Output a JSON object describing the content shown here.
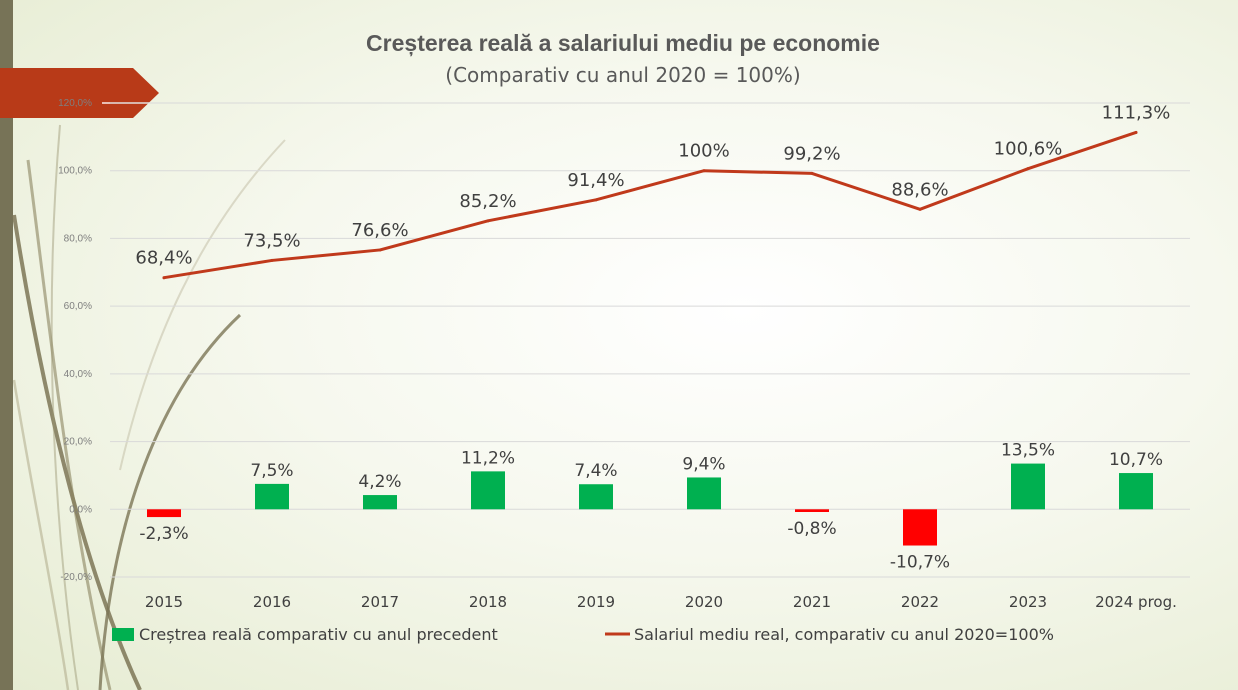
{
  "chart_data": {
    "type": "bar+line",
    "title": "Creșterea reală a salariului mediu pe economie",
    "subtitle": "(Comparativ cu anul 2020 = 100%)",
    "categories": [
      "2015",
      "2016",
      "2017",
      "2018",
      "2019",
      "2020",
      "2021",
      "2022",
      "2023",
      "2024 prog."
    ],
    "y_axis": {
      "ylim": [
        -20,
        120
      ],
      "ticks": [
        -20,
        0,
        20,
        40,
        60,
        80,
        100,
        120
      ],
      "tick_labels": [
        "-20,0%",
        "0,0%",
        "20,0%",
        "40,0%",
        "60,0%",
        "80,0%",
        "100,0%",
        "120,0%"
      ]
    },
    "grid": true,
    "legend_position": "bottom",
    "series": [
      {
        "name": "Creștrea reală comparativ cu anul precedent",
        "kind": "bar",
        "values": [
          -2.3,
          7.5,
          4.2,
          11.2,
          7.4,
          9.4,
          -0.8,
          -10.7,
          13.5,
          10.7
        ],
        "labels": [
          "-2,3%",
          "7,5%",
          "4,2%",
          "11,2%",
          "7,4%",
          "9,4%",
          "-0,8%",
          "-10,7%",
          "13,5%",
          "10,7%"
        ],
        "positive_color": "#00b050",
        "negative_color": "#ff0000"
      },
      {
        "name": "Salariul mediu real, comparativ cu anul 2020=100%",
        "kind": "line",
        "values": [
          68.4,
          73.5,
          76.6,
          85.2,
          91.4,
          100,
          99.2,
          88.6,
          100.6,
          111.3
        ],
        "labels": [
          "68,4%",
          "73,5%",
          "76,6%",
          "85,2%",
          "91,4%",
          "100%",
          "99,2%",
          "88,6%",
          "100,6%",
          "111,3%"
        ],
        "color": "#c0391b"
      }
    ]
  },
  "colors": {
    "left_strip": "#777357",
    "arrow_banner": "#b83a18",
    "decor_stroke": "#7c7556"
  }
}
